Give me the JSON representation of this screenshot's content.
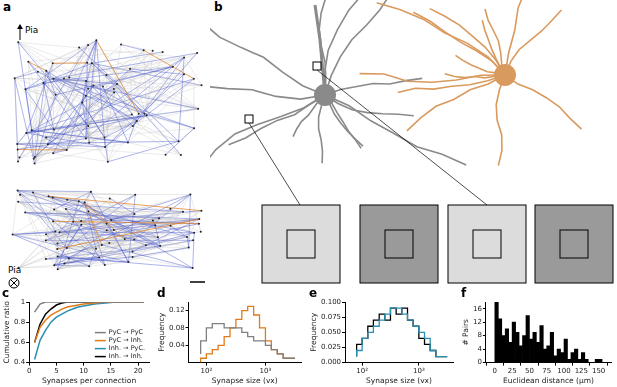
{
  "figure": {
    "panel_a": {
      "panel_label": "a",
      "texts": [
        "Pia",
        "Pia"
      ]
    },
    "panel_b": {
      "panel_label": "b"
    }
  },
  "chart_data": [
    {
      "panel_label": "c",
      "type": "line",
      "x_label": "Synapses per connection",
      "y_label": "Cumulative ratio",
      "x": [
        1,
        2,
        3,
        4,
        5,
        6,
        7,
        8,
        9,
        10,
        12,
        14,
        16,
        18,
        20,
        21
      ],
      "series": [
        {
          "name": "PyC → PyC",
          "color": "#808080",
          "values": [
            0.9,
            0.98,
            1,
            1,
            1,
            1,
            1,
            1,
            1,
            1,
            1,
            1,
            1,
            1,
            1,
            1
          ]
        },
        {
          "name": "PyC → Inh.",
          "color": "#e07b1a",
          "values": [
            0.6,
            0.75,
            0.82,
            0.87,
            0.9,
            0.93,
            0.95,
            0.96,
            0.97,
            0.98,
            0.99,
            1,
            1,
            1,
            1,
            1
          ]
        },
        {
          "name": "Inh. → PyC.",
          "color": "#2a8fb0",
          "values": [
            0.43,
            0.62,
            0.72,
            0.8,
            0.85,
            0.88,
            0.91,
            0.93,
            0.95,
            0.96,
            0.98,
            0.99,
            1,
            1,
            1,
            1
          ]
        },
        {
          "name": "Inh. → Inh.",
          "color": "#000000",
          "values": [
            0.6,
            0.78,
            0.88,
            0.93,
            0.97,
            0.99,
            1,
            1,
            1,
            1,
            1,
            1,
            1,
            1,
            1,
            1
          ]
        }
      ],
      "xlim": [
        0,
        22
      ],
      "xticks": [
        0,
        5,
        10,
        15,
        20
      ],
      "ylim": [
        0.4,
        1.0
      ],
      "yticks": [
        0.4,
        0.6,
        0.8,
        1.0
      ],
      "grid": false,
      "legend": "lower right"
    },
    {
      "panel_label": "d",
      "type": "histogram",
      "line_style": "step",
      "log": "x",
      "x_label": "Synapse size (vx)",
      "y_label": "Frequency",
      "bins": [
        80,
        100,
        126,
        158,
        200,
        251,
        316,
        398,
        501,
        631,
        794,
        1000,
        1259,
        1585,
        1995,
        2512,
        3162
      ],
      "series": [
        {
          "color": "#808080",
          "values": [
            0.02,
            0.05,
            0.08,
            0.09,
            0.09,
            0.08,
            0.08,
            0.08,
            0.07,
            0.06,
            0.05,
            0.05,
            0.04,
            0.03,
            0.02,
            0.01
          ]
        },
        {
          "color": "#e07b1a",
          "values": [
            0.0,
            0.01,
            0.02,
            0.03,
            0.04,
            0.06,
            0.08,
            0.1,
            0.12,
            0.13,
            0.11,
            0.08,
            0.05,
            0.03,
            0.02,
            0.01
          ]
        }
      ],
      "xlim": [
        50,
        4000
      ],
      "xticks": [
        {
          "value": 100,
          "label": "10²"
        },
        {
          "value": 1000,
          "label": "10³"
        }
      ],
      "ylim": [
        0,
        0.14
      ],
      "yticks": [
        0.04,
        0.08,
        0.12
      ],
      "grid": false
    },
    {
      "panel_label": "e",
      "type": "histogram",
      "line_style": "step",
      "log": "x",
      "x_label": "Synapse size (vx)",
      "y_label": "Frequency",
      "bins": [
        80,
        100,
        126,
        158,
        200,
        251,
        316,
        398,
        501,
        631,
        794,
        1000,
        1259,
        1585,
        1995,
        2512,
        3162
      ],
      "series": [
        {
          "color": "#2a8fb0",
          "values": [
            0.01,
            0.02,
            0.04,
            0.05,
            0.06,
            0.07,
            0.08,
            0.09,
            0.09,
            0.08,
            0.07,
            0.06,
            0.05,
            0.04,
            0.02,
            0.01
          ]
        },
        {
          "color": "#000000",
          "values": [
            0.01,
            0.03,
            0.04,
            0.06,
            0.07,
            0.08,
            0.07,
            0.09,
            0.08,
            0.09,
            0.07,
            0.06,
            0.04,
            0.03,
            0.02,
            0.01
          ]
        }
      ],
      "xlim": [
        50,
        4000
      ],
      "xticks": [
        {
          "value": 100,
          "label": "10²"
        },
        {
          "value": 1000,
          "label": "10³"
        }
      ],
      "ylim": [
        0,
        0.1
      ],
      "yticks": [
        {
          "value": 0,
          "label": "0.000"
        },
        {
          "value": 0.025,
          "label": "0.025"
        },
        {
          "value": 0.05,
          "label": "0.050"
        },
        {
          "value": 0.075,
          "label": "0.075"
        },
        {
          "value": 0.1,
          "label": "0.100"
        }
      ],
      "grid": false
    },
    {
      "panel_label": "f",
      "type": "histogram",
      "x_label": "Euclidean distance (µm)",
      "y_label": "# Pairs",
      "bins": [
        0,
        5,
        10,
        15,
        20,
        25,
        30,
        35,
        40,
        45,
        50,
        55,
        60,
        65,
        70,
        75,
        80,
        85,
        90,
        95,
        100,
        105,
        110,
        115,
        120,
        125,
        130,
        135,
        140,
        145,
        150,
        155
      ],
      "series": [
        {
          "color": "#000000",
          "values": [
            18,
            13,
            8,
            10,
            6,
            12,
            9,
            5,
            8,
            14,
            7,
            9,
            6,
            11,
            4,
            5,
            9,
            2,
            4,
            3,
            7,
            1,
            3,
            4,
            1,
            3,
            1,
            0,
            0,
            1,
            1
          ]
        }
      ],
      "xlim": [
        0,
        155
      ],
      "xticks": [
        0,
        25,
        50,
        75,
        100,
        125,
        150
      ],
      "ylim": [
        0,
        18
      ],
      "yticks": [
        0,
        4,
        8,
        12,
        16
      ],
      "grid": false
    }
  ]
}
